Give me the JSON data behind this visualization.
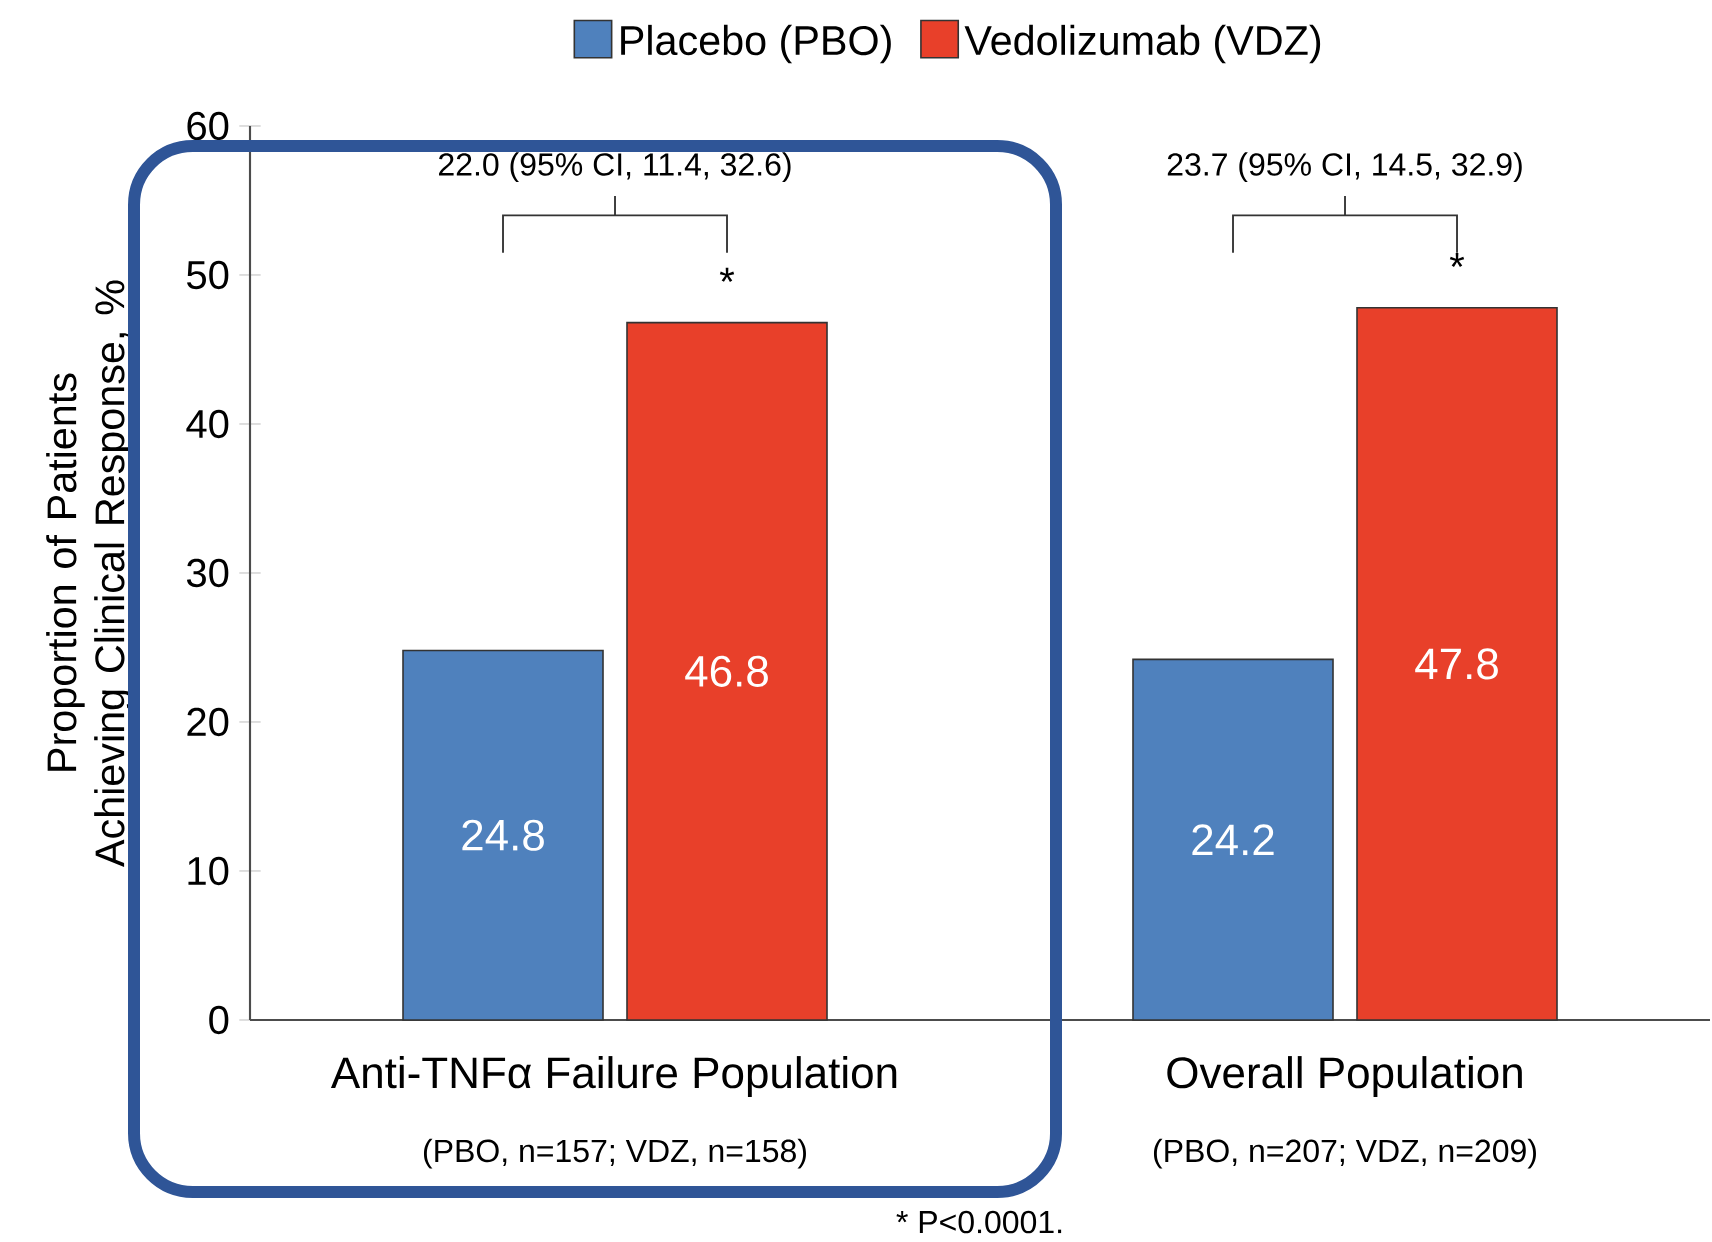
{
  "chart_data": {
    "type": "bar",
    "categories": [
      "Anti-TNFα Failure Population",
      "Overall Population"
    ],
    "series": [
      {
        "name": "Placebo (PBO)",
        "color": "#4f81bd",
        "values": [
          24.8,
          24.2
        ]
      },
      {
        "name": "Vedolizumab (VDZ)",
        "color": "#e8402a",
        "values": [
          46.8,
          47.8
        ]
      }
    ],
    "ylabel": "Proportion of Patients Achieving Clinical Response, %",
    "ylim": [
      0,
      60
    ],
    "yticks": [
      0,
      10,
      20,
      30,
      40,
      50,
      60
    ],
    "data_labels": true,
    "legend": "top",
    "grid": false,
    "annotations": [
      "22.0 (95% CI, 11.4, 32.6)",
      "23.7 (95% CI, 14.5, 32.9)",
      "*",
      "*",
      "(PBO, n=157; VDZ, n=158)",
      "(PBO, n=207; VDZ, n=209)",
      "* P<0.0001."
    ]
  }
}
